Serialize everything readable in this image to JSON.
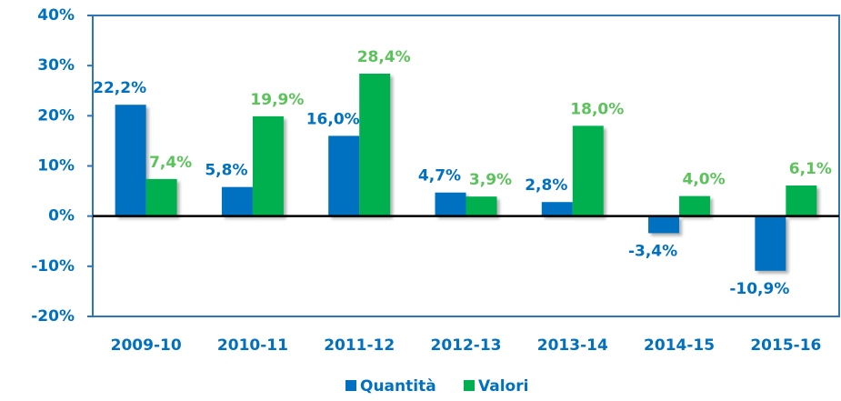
{
  "chart_data": {
    "type": "bar",
    "categories": [
      "2009-10",
      "2010-11",
      "2011-12",
      "2012-13",
      "2013-14",
      "2014-15",
      "2015-16"
    ],
    "series": [
      {
        "name": "Quantità",
        "color": "#0070c0",
        "label_color": "#0070c0",
        "values": [
          22.2,
          5.8,
          16.0,
          4.7,
          2.8,
          -3.4,
          -10.9
        ],
        "value_labels": [
          "22,2%",
          "5,8%",
          "16,0%",
          "4,7%",
          "2,8%",
          "-3,4%",
          "-10,9%"
        ]
      },
      {
        "name": "Valori",
        "color": "#00b050",
        "label_color": "#5cc35c",
        "values": [
          7.4,
          19.9,
          28.4,
          3.9,
          18.0,
          4.0,
          6.1
        ],
        "value_labels": [
          "7,4%",
          "19,9%",
          "28,4%",
          "3,9%",
          "18,0%",
          "4,0%",
          "6,1%"
        ]
      }
    ],
    "ylim": [
      -20,
      40
    ],
    "yticks": [
      {
        "value": -20,
        "label": "-20%"
      },
      {
        "value": -10,
        "label": "-10%"
      },
      {
        "value": 0,
        "label": "0%"
      },
      {
        "value": 10,
        "label": "10%"
      },
      {
        "value": 20,
        "label": "20%"
      },
      {
        "value": 30,
        "label": "30%"
      },
      {
        "value": 40,
        "label": "40%"
      }
    ],
    "legend": "bottom"
  }
}
